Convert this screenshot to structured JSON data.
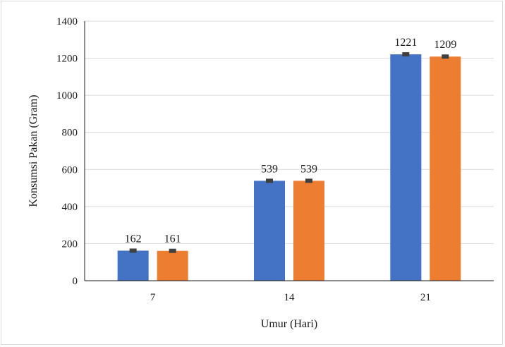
{
  "chart_data": {
    "type": "bar",
    "title": "",
    "xlabel": "Umur (Hari)",
    "ylabel": "Konsumsi Pakan (Gram)",
    "categories": [
      "7",
      "14",
      "21"
    ],
    "series": [
      {
        "values": [
          162,
          539,
          1221
        ],
        "color": "#4472c4"
      },
      {
        "values": [
          161,
          539,
          1209
        ],
        "color": "#ed7d31"
      }
    ],
    "ylim": [
      0,
      1400
    ],
    "yticks": [
      0,
      200,
      400,
      600,
      800,
      1000,
      1200,
      1400
    ],
    "grid": true,
    "legend": "none",
    "error_bars": true,
    "error_bar_color": "#404040"
  }
}
